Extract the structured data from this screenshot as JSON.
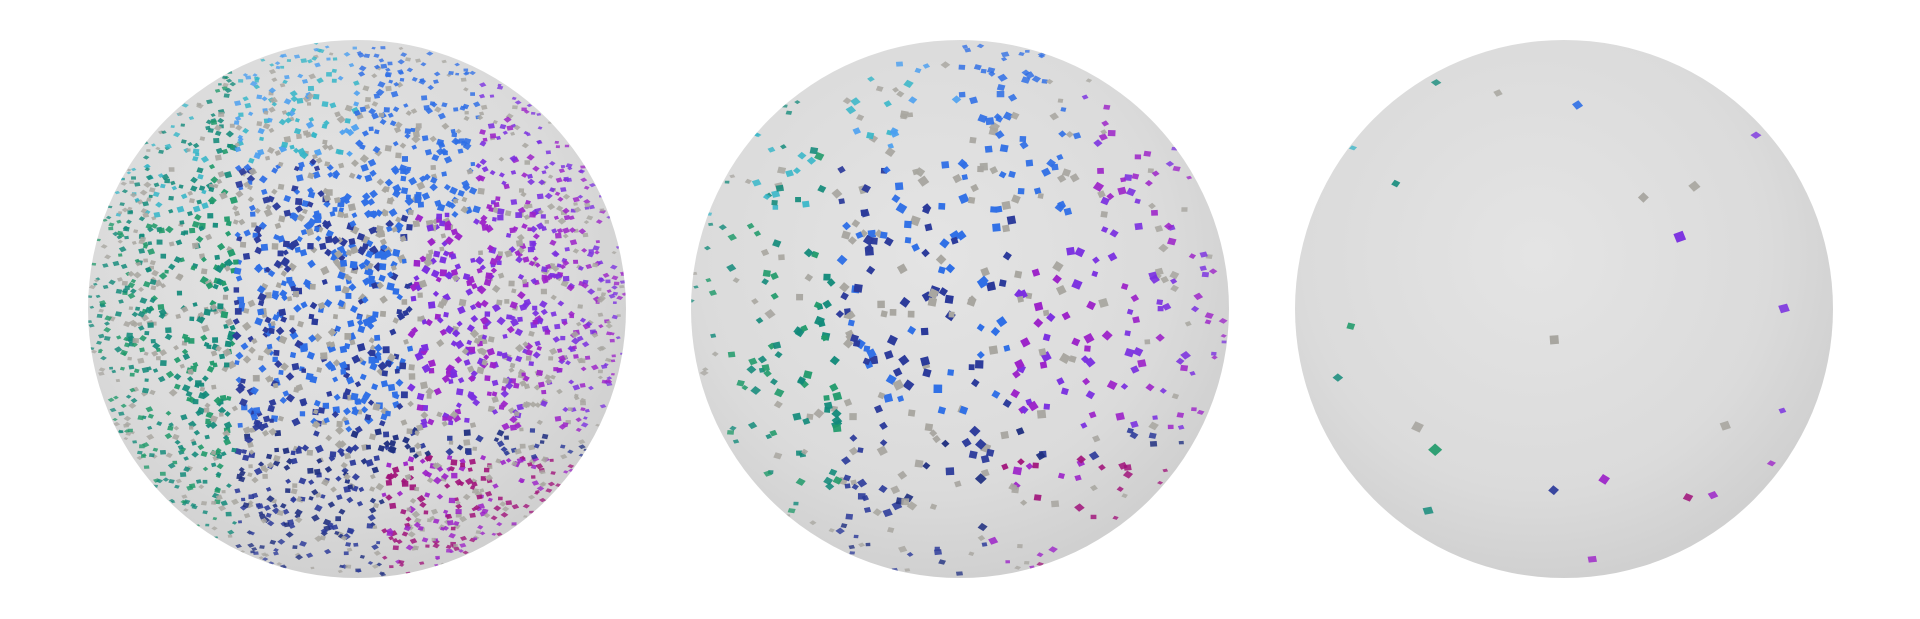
{
  "figure": {
    "background": "#ffffff",
    "sphere_base_color": "#d9d9d9",
    "panels": [
      {
        "id": "dense",
        "marker_count": 2600,
        "marker_size": 1.0
      },
      {
        "id": "medium",
        "marker_count": 620,
        "marker_size": 1.25
      },
      {
        "id": "sparse",
        "marker_count": 24,
        "marker_size": 1.55
      }
    ],
    "palette": {
      "teal": "#128a7a",
      "green": "#1f9a6a",
      "cyan": "#36b6c8",
      "blue": "#2f6fe6",
      "skyblue": "#4a9ff0",
      "indigo": "#2b3a9a",
      "navy": "#1f2f80",
      "violet": "#7a2fe0",
      "purple": "#9c22c8",
      "magenta": "#a0127a",
      "gray": "#a8a6a0"
    }
  }
}
